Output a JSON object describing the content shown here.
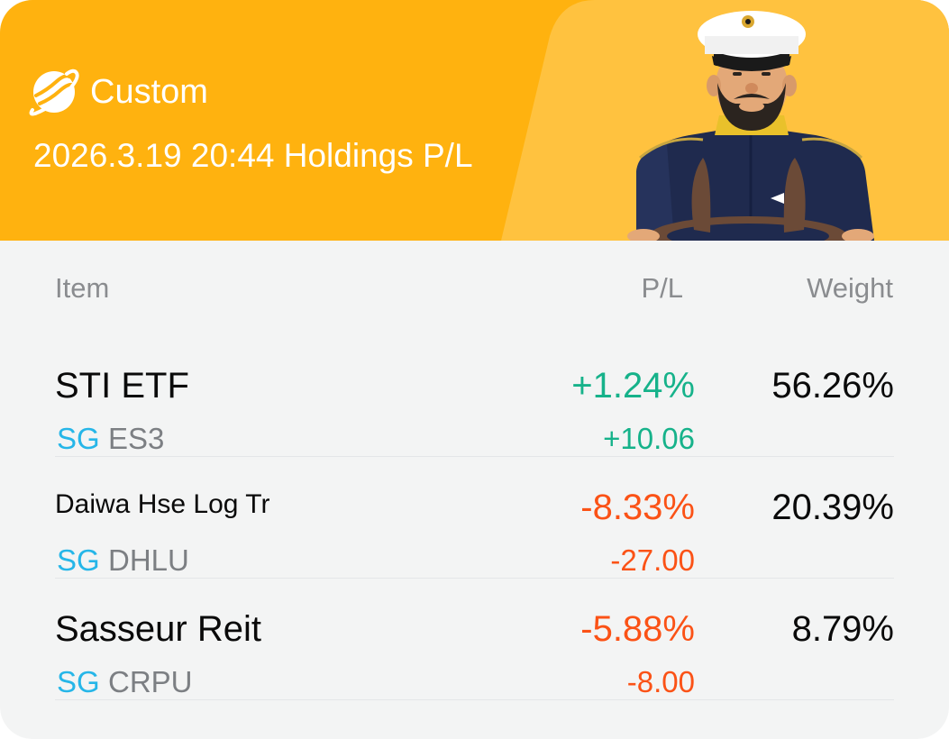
{
  "header": {
    "brand_name": "Custom",
    "subtitle": "2026.3.19 20:44 Holdings P/L",
    "colors": {
      "primary": "#ffb20f",
      "accent": "#ffc23f"
    },
    "icons": [
      "planet-icon",
      "captain-illustration"
    ]
  },
  "columns": {
    "item": "Item",
    "pl": "P/L",
    "weight": "Weight"
  },
  "holdings": [
    {
      "name": "STI ETF",
      "market": "SG",
      "code": "ES3",
      "pl_pct": "+1.24%",
      "pl_amount": "+10.06",
      "weight": "56.26%",
      "direction": "up"
    },
    {
      "name": "Daiwa Hse Log Tr",
      "market": "SG",
      "code": "DHLU",
      "pl_pct": "-8.33%",
      "pl_amount": "-27.00",
      "weight": "20.39%",
      "direction": "down"
    },
    {
      "name": "Sasseur Reit",
      "market": "SG",
      "code": "CRPU",
      "pl_pct": "-5.88%",
      "pl_amount": "-8.00",
      "weight": "8.79%",
      "direction": "down"
    }
  ],
  "status_colors": {
    "up": "#16b28a",
    "down": "#fb5216",
    "market": "#26b6e8"
  }
}
